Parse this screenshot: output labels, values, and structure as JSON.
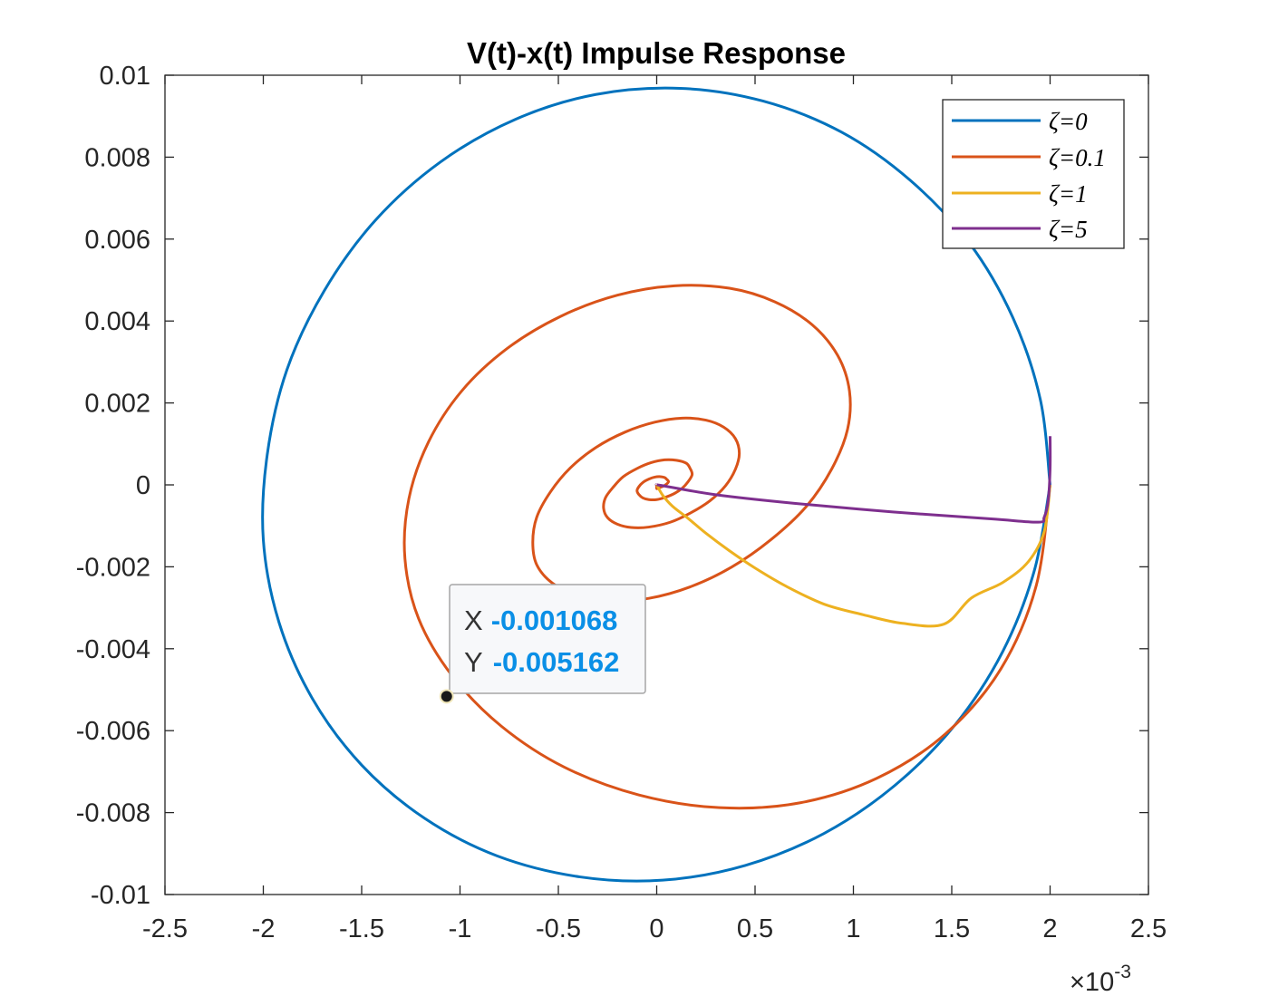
{
  "chart_data": {
    "type": "line",
    "title": "V(t)-x(t) Impulse Response",
    "xlabel": "",
    "ylabel": "",
    "xlim": [
      -0.0025,
      0.0025
    ],
    "ylim": [
      -0.01,
      0.01
    ],
    "x_exponent_label": "×10",
    "x_exponent_power": "-3",
    "x_ticks": [
      -0.0025,
      -0.002,
      -0.0015,
      -0.001,
      -0.0005,
      0,
      0.0005,
      0.001,
      0.0015,
      0.002,
      0.0025
    ],
    "x_tick_labels": [
      "-2.5",
      "-2",
      "-1.5",
      "-1",
      "-0.5",
      "0",
      "0.5",
      "1",
      "1.5",
      "2",
      "2.5"
    ],
    "y_ticks": [
      0.01,
      0.008,
      0.006,
      0.004,
      0.002,
      0,
      -0.002,
      -0.004,
      -0.006,
      -0.008,
      -0.01
    ],
    "y_tick_labels": [
      "0.01",
      "0.008",
      "0.006",
      "0.004",
      "0.002",
      "0",
      "-0.002",
      "-0.004",
      "-0.006",
      "-0.008",
      "-0.01"
    ],
    "grid": false,
    "legend_position": "top-right",
    "series": [
      {
        "name": "ζ=0",
        "color": "#0072bd",
        "points": [
          [
            0.002,
            0.0
          ],
          [
            0.00195,
            0.00209
          ],
          [
            0.00181,
            0.00409
          ],
          [
            0.00159,
            0.0059
          ],
          [
            0.00129,
            0.00743
          ],
          [
            0.00094,
            0.00861
          ],
          [
            0.00054,
            0.00937
          ],
          [
            0.00012,
            0.00968
          ],
          [
            -0.00031,
            0.00953
          ],
          [
            -0.00072,
            0.00892
          ],
          [
            -0.0011,
            0.00788
          ],
          [
            -0.00143,
            0.00646
          ],
          [
            -0.00169,
            0.00474
          ],
          [
            -0.00188,
            0.00281
          ],
          [
            -0.00198,
            0.00074
          ],
          [
            -0.002,
            -0.00134
          ],
          [
            -0.00192,
            -0.00336
          ],
          [
            -0.00175,
            -0.00522
          ],
          [
            -0.0015,
            -0.00684
          ],
          [
            -0.00118,
            -0.00814
          ],
          [
            -0.00081,
            -0.00906
          ],
          [
            -0.00039,
            -0.00957
          ],
          [
            3e-05,
            -0.00965
          ],
          [
            0.00045,
            -0.00929
          ],
          [
            0.00085,
            -0.00851
          ],
          [
            0.00121,
            -0.00734
          ],
          [
            0.00152,
            -0.00584
          ],
          [
            0.00176,
            -0.00406
          ],
          [
            0.00192,
            -0.00209
          ],
          [
            0.002,
            0.0
          ]
        ]
      },
      {
        "name": "ζ=0.1",
        "color": "#d95319",
        "points": [
          [
            0.002,
            0.0
          ],
          [
            0.00193,
            -0.00245
          ],
          [
            0.00175,
            -0.00449
          ],
          [
            0.00147,
            -0.00607
          ],
          [
            0.00112,
            -0.00716
          ],
          [
            0.00073,
            -0.00776
          ],
          [
            0.00032,
            -0.00788
          ],
          [
            -9e-05,
            -0.00757
          ],
          [
            -0.00047,
            -0.00689
          ],
          [
            -0.00079,
            -0.00589
          ],
          [
            -0.00104,
            -0.00466
          ],
          [
            -0.00121,
            -0.00327
          ],
          [
            -0.00128,
            -0.0018
          ],
          [
            -0.00126,
            -0.00034
          ],
          [
            -0.00116,
            0.00105
          ],
          [
            -0.00099,
            0.0023
          ],
          [
            -0.00076,
            0.00333
          ],
          [
            -0.00049,
            0.00411
          ],
          [
            -0.0002,
            0.00463
          ],
          [
            9e-05,
            0.00486
          ],
          [
            0.00037,
            0.0048
          ],
          [
            0.0006,
            0.00447
          ],
          [
            0.00079,
            0.00391
          ],
          [
            0.00092,
            0.00316
          ],
          [
            0.00098,
            0.00229
          ],
          [
            0.00097,
            0.00135
          ],
          [
            0.00089,
            0.00039
          ],
          [
            0.00076,
            -0.00053
          ],
          [
            0.00058,
            -0.00134
          ],
          [
            0.00038,
            -0.00201
          ],
          [
            0.00017,
            -0.00249
          ],
          [
            -4e-05,
            -0.00277
          ],
          [
            -0.00024,
            -0.00284
          ],
          [
            -0.0004,
            -0.00271
          ],
          [
            -0.00053,
            -0.0024
          ],
          [
            -0.00061,
            -0.00195
          ],
          [
            -0.00063,
            -0.0014
          ],
          [
            -0.00061,
            -0.00079
          ],
          [
            -0.00054,
            -0.00017
          ],
          [
            -0.00044,
            0.00041
          ],
          [
            -0.00031,
            0.00091
          ],
          [
            -0.00016,
            0.00129
          ],
          [
            -1e-05,
            0.00153
          ],
          [
            0.00013,
            0.00163
          ],
          [
            0.00025,
            0.00158
          ],
          [
            0.00034,
            0.00141
          ],
          [
            0.0004,
            0.00113
          ],
          [
            0.00042,
            0.00077
          ],
          [
            0.0004,
            0.00038
          ],
          [
            0.00035,
            -2e-05
          ],
          [
            0.00027,
            -0.00039
          ],
          [
            0.00017,
            -0.00069
          ],
          [
            7e-05,
            -0.00091
          ],
          [
            -4e-05,
            -0.00103
          ],
          [
            -0.00013,
            -0.00104
          ],
          [
            -0.0002,
            -0.00096
          ],
          [
            -0.00025,
            -0.0008
          ],
          [
            -0.00027,
            -0.00057
          ],
          [
            -0.00026,
            -0.00031
          ],
          [
            -0.00022,
            -5e-05
          ],
          [
            -0.00017,
            0.0002
          ],
          [
            -0.0001,
            0.0004
          ],
          [
            -3e-05,
            0.00054
          ],
          [
            4e-05,
            0.00061
          ],
          [
            0.0001,
            0.0006
          ],
          [
            0.00015,
            0.00053
          ],
          [
            0.00017,
            0.0004
          ],
          [
            0.00018,
            0.00025
          ],
          [
            0.00016,
            8e-05
          ],
          [
            0.00013,
            -8e-05
          ],
          [
            9e-05,
            -0.00021
          ],
          [
            4e-05,
            -0.00031
          ],
          [
            0.0,
            -0.00036
          ],
          [
            -4e-05,
            -0.00036
          ],
          [
            -7e-05,
            -0.00032
          ],
          [
            -9e-05,
            -0.00024
          ],
          [
            -0.0001,
            -0.00014
          ],
          [
            -9e-05,
            -4e-05
          ],
          [
            -7e-05,
            6e-05
          ],
          [
            -4e-05,
            0.00014
          ],
          [
            -1e-05,
            0.00019
          ],
          [
            2e-05,
            0.0002
          ],
          [
            4e-05,
            0.00018
          ],
          [
            5e-05,
            0.00014
          ],
          [
            6e-05,
            8e-05
          ],
          [
            5e-05,
            2e-05
          ],
          [
            3e-05,
            -4e-05
          ],
          [
            1e-05,
            -7e-05
          ],
          [
            0.0,
            -9e-05
          ],
          [
            0.0,
            0.0
          ]
        ]
      },
      {
        "name": "ζ=1",
        "color": "#edb120",
        "points": [
          [
            0.002,
            0.0
          ],
          [
            0.00197,
            -0.00114
          ],
          [
            0.00189,
            -0.00187
          ],
          [
            0.00176,
            -0.00238
          ],
          [
            0.0016,
            -0.00276
          ],
          [
            0.00146,
            -0.0034
          ],
          [
            0.00125,
            -0.00338
          ],
          [
            0.00105,
            -0.00317
          ],
          [
            0.00085,
            -0.00291
          ],
          [
            0.00066,
            -0.00248
          ],
          [
            0.0005,
            -0.00203
          ],
          [
            0.00037,
            -0.00161
          ],
          [
            0.00025,
            -0.00118
          ],
          [
            0.00016,
            -0.00082
          ],
          [
            8e-05,
            -0.00052
          ],
          [
            3e-05,
            -0.00025
          ],
          [
            0.0,
            0.0
          ]
        ]
      },
      {
        "name": "ζ=5",
        "color": "#7e2f8e",
        "points": [
          [
            0.002,
            0.00119
          ],
          [
            0.002,
            0.0004
          ],
          [
            0.00199,
            -0.0004
          ],
          [
            0.00197,
            -0.00079
          ],
          [
            0.00194,
            -0.00091
          ],
          [
            0.0017,
            -0.00083
          ],
          [
            0.0012,
            -0.00066
          ],
          [
            0.0007,
            -0.00045
          ],
          [
            0.0003,
            -0.00024
          ],
          [
            3e-05,
            -2e-05
          ],
          [
            0.0,
            0.0
          ]
        ]
      }
    ],
    "datatip": {
      "x_label": "X",
      "y_label": "Y",
      "x_value": "-0.001068",
      "y_value": "-0.005162",
      "x": -0.001068,
      "y": -0.005162
    }
  }
}
